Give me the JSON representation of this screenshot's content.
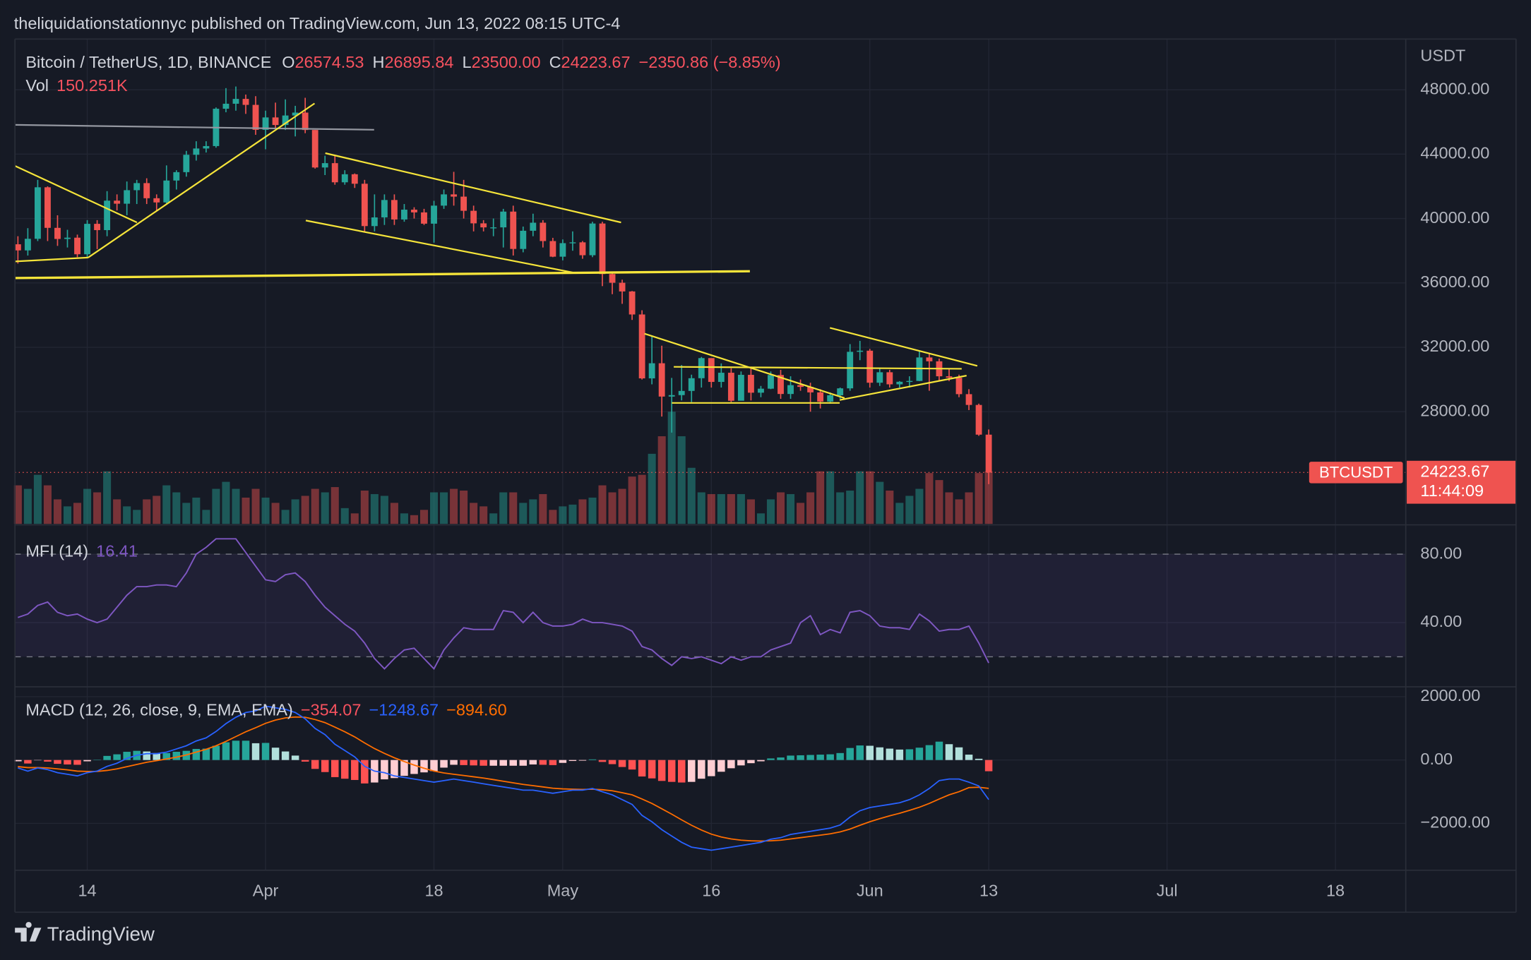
{
  "page": {
    "header": "theliquidationstationnyc published on TradingView.com, Jun 13, 2022 08:15 UTC-4",
    "brand": "TradingView"
  },
  "chart_data": [
    {
      "type": "candlestick",
      "title": "Bitcoin / TetherUS, 1D, BINANCE",
      "legend": [
        {
          "label": "O",
          "value": "26574.53"
        },
        {
          "label": "H",
          "value": "26895.84"
        },
        {
          "label": "L",
          "value": "23500.00"
        },
        {
          "label": "C",
          "value": "24223.67"
        }
      ],
      "change": "−2350.86 (−8.85%)",
      "volume_title": "Vol",
      "volume_value": "150.251K",
      "axis_unit": "USDT",
      "price_tag": "BTCUSDT",
      "price_value": "24223.67",
      "countdown": "11:44:09",
      "up_color": "#26a69a",
      "down_color": "#ef5350",
      "open": [
        38400,
        38020,
        38740,
        41940,
        39420,
        38730,
        38810,
        37780,
        39670,
        39280,
        41110,
        40920,
        41760,
        42200,
        41260,
        41000,
        42360,
        42880,
        43960,
        44350,
        44500,
        46820,
        47130,
        47430,
        47060,
        45510,
        46280,
        45810,
        46400,
        46580,
        45500,
        43170,
        43440,
        42250,
        42750,
        42160,
        39530,
        40070,
        41150,
        39940,
        40550,
        40380,
        39680,
        40800,
        41500,
        41360,
        40480,
        39700,
        39450,
        39450,
        40430,
        38110,
        39240,
        39740,
        38600,
        37630,
        38470,
        38520,
        37720,
        39690,
        36550,
        36010,
        35470,
        34040,
        30070,
        31010,
        28940,
        29030,
        29290,
        30080,
        31330,
        29850,
        30420,
        28680,
        30290,
        29180,
        29430,
        30280,
        29100,
        29650,
        29540,
        29200,
        28630,
        29020,
        29450,
        31720,
        31790,
        29800,
        30450,
        29700,
        29860,
        29910,
        31370,
        31130,
        30200,
        30110,
        29090,
        28420,
        26574.53
      ],
      "high": [
        38900,
        39400,
        42400,
        42000,
        40200,
        39300,
        39000,
        39900,
        39900,
        41700,
        41500,
        42300,
        42400,
        42500,
        41500,
        43300,
        43000,
        44200,
        44800,
        44800,
        46900,
        48100,
        48200,
        47700,
        47600,
        46700,
        47200,
        47400,
        47000,
        47500,
        45500,
        43900,
        43900,
        43000,
        42800,
        42400,
        41500,
        41500,
        41500,
        40900,
        40700,
        40600,
        41100,
        41800,
        42900,
        42400,
        40800,
        39900,
        40000,
        40600,
        40800,
        39500,
        40300,
        39900,
        38800,
        38700,
        39200,
        38600,
        39800,
        39800,
        36700,
        36200,
        35500,
        34300,
        32700,
        32100,
        30100,
        30900,
        30300,
        31400,
        31300,
        31000,
        30700,
        30500,
        30800,
        29600,
        30500,
        30600,
        30200,
        30000,
        29800,
        29400,
        29200,
        29500,
        32200,
        32400,
        31900,
        30700,
        30600,
        29900,
        30200,
        31800,
        31600,
        31300,
        30700,
        30300,
        29400,
        28500,
        26895.84
      ],
      "low": [
        37200,
        37700,
        38600,
        38600,
        38300,
        38200,
        37600,
        37600,
        38100,
        38900,
        40500,
        40200,
        40900,
        40900,
        40500,
        40900,
        41800,
        42600,
        43600,
        44100,
        44400,
        46600,
        46700,
        46500,
        45200,
        44300,
        45600,
        45500,
        45100,
        45300,
        43100,
        42700,
        42100,
        42100,
        41900,
        39200,
        39200,
        39600,
        39600,
        39800,
        40000,
        39600,
        38500,
        40600,
        40800,
        40000,
        39200,
        39200,
        38900,
        38200,
        37700,
        37900,
        38900,
        38200,
        37600,
        37400,
        38000,
        37500,
        37600,
        35800,
        35300,
        34700,
        33700,
        30000,
        29700,
        27700,
        26700,
        28700,
        28600,
        29500,
        29500,
        29500,
        28600,
        28700,
        28700,
        28900,
        29400,
        28800,
        28800,
        29300,
        28000,
        28200,
        28500,
        28800,
        29300,
        31200,
        29500,
        29600,
        29500,
        29500,
        29500,
        29900,
        29300,
        29900,
        29900,
        28900,
        28100,
        26500,
        23500
      ],
      "close": [
        38020,
        38740,
        41940,
        39420,
        38730,
        38810,
        37780,
        39670,
        39280,
        41110,
        40920,
        41760,
        42200,
        41260,
        41000,
        42360,
        42880,
        43960,
        44350,
        44500,
        46820,
        47130,
        47430,
        47060,
        45510,
        46280,
        45810,
        46400,
        46580,
        45500,
        43170,
        43440,
        42250,
        42750,
        42160,
        39530,
        40070,
        41150,
        39940,
        40550,
        40380,
        39680,
        40800,
        41500,
        41360,
        40480,
        39700,
        39450,
        39450,
        40430,
        38110,
        39240,
        39740,
        38600,
        37630,
        38470,
        38520,
        37720,
        39690,
        36550,
        36010,
        35470,
        34040,
        30070,
        31010,
        28940,
        29030,
        29290,
        30080,
        31330,
        29850,
        30420,
        28680,
        30290,
        29180,
        29430,
        30280,
        29100,
        29650,
        29540,
        29200,
        28630,
        29020,
        29450,
        31720,
        31790,
        29800,
        30450,
        29700,
        29860,
        29910,
        31370,
        31130,
        30200,
        30110,
        29090,
        28420,
        26574.53,
        24223.67
      ],
      "volume": [
        110,
        100,
        140,
        110,
        70,
        50,
        60,
        100,
        90,
        150,
        70,
        50,
        40,
        70,
        80,
        110,
        90,
        60,
        75,
        40,
        100,
        120,
        100,
        75,
        100,
        75,
        60,
        40,
        70,
        80,
        100,
        90,
        105,
        45,
        30,
        95,
        85,
        80,
        60,
        30,
        25,
        40,
        90,
        90,
        100,
        95,
        60,
        50,
        30,
        90,
        90,
        60,
        70,
        85,
        40,
        50,
        55,
        70,
        75,
        110,
        90,
        100,
        135,
        140,
        200,
        250,
        320,
        250,
        160,
        90,
        85,
        85,
        85,
        85,
        70,
        30,
        70,
        90,
        85,
        60,
        90,
        150,
        150,
        90,
        95,
        150,
        150,
        120,
        95,
        60,
        80,
        100,
        145,
        125,
        90,
        70,
        90,
        145,
        150.251
      ],
      "ylim": [
        21030,
        51150
      ],
      "yticks": [
        {
          "value": 48000,
          "label": "48000.00"
        },
        {
          "value": 44000,
          "label": "44000.00"
        },
        {
          "value": 40000,
          "label": "40000.00"
        },
        {
          "value": 36000,
          "label": "36000.00"
        },
        {
          "value": 32000,
          "label": "32000.00"
        },
        {
          "value": 28000,
          "label": "28000.00"
        }
      ],
      "xlim": [
        -0.3,
        140.1
      ],
      "xticks": [
        {
          "value": 7,
          "label": "14"
        },
        {
          "value": 25,
          "label": "Apr"
        },
        {
          "value": 42,
          "label": "18"
        },
        {
          "value": 55,
          "label": "May"
        },
        {
          "value": 70,
          "label": "16"
        },
        {
          "value": 86,
          "label": "Jun"
        },
        {
          "value": 98,
          "label": "13"
        },
        {
          "value": 116,
          "label": "Jul"
        },
        {
          "value": 133,
          "label": "18"
        }
      ],
      "grid": true
    },
    {
      "type": "line",
      "title": "MFI (14)",
      "value_label": "16.41",
      "color": "#7e57c2",
      "values": [
        43,
        45,
        50,
        52,
        46,
        44,
        45,
        42,
        40,
        42,
        49,
        56,
        61,
        61,
        62,
        62,
        61,
        69,
        80,
        84,
        89,
        89,
        89,
        81,
        73,
        65,
        64,
        68,
        69,
        64,
        56,
        49,
        44,
        39,
        35,
        28,
        19,
        13,
        19,
        24,
        25,
        19,
        13,
        24,
        31,
        37,
        36,
        36,
        36,
        47,
        46,
        40,
        46,
        40,
        38,
        38,
        39,
        42,
        40,
        40,
        39,
        38,
        35,
        26,
        24,
        19,
        15,
        20,
        19,
        20,
        18,
        16,
        20,
        18,
        20,
        20,
        24,
        26,
        28,
        40,
        44,
        33,
        36,
        34,
        46,
        47,
        44,
        38,
        37,
        37,
        36,
        45,
        41,
        35,
        36,
        36,
        38,
        28,
        16.41
      ],
      "bands": [
        20,
        80
      ],
      "ylim": [
        3,
        96
      ],
      "yticks": [
        {
          "value": 80,
          "label": "80.00"
        },
        {
          "value": 40,
          "label": "40.00"
        }
      ]
    },
    {
      "type": "macd",
      "title": "MACD (12, 26, close, 9, EMA, EMA)",
      "histogram": {
        "value_label": "−354.07",
        "colors": {
          "grow_above": "#26a69a",
          "fall_above": "#b2dfdb",
          "grow_below": "#ffcdd2",
          "fall_below": "#ff5252"
        },
        "values": [
          -40,
          -110,
          -10,
          -50,
          -120,
          -140,
          -150,
          -40,
          10,
          130,
          180,
          260,
          290,
          270,
          220,
          220,
          260,
          290,
          350,
          360,
          450,
          560,
          610,
          610,
          530,
          540,
          390,
          270,
          140,
          -50,
          -280,
          -380,
          -540,
          -590,
          -630,
          -740,
          -710,
          -610,
          -570,
          -500,
          -440,
          -390,
          -350,
          -240,
          -150,
          -160,
          -170,
          -180,
          -180,
          -180,
          -180,
          -180,
          -140,
          -150,
          -160,
          -90,
          -30,
          -20,
          20,
          -60,
          -130,
          -220,
          -300,
          -520,
          -580,
          -660,
          -690,
          -710,
          -690,
          -590,
          -510,
          -370,
          -260,
          -170,
          -100,
          -40,
          50,
          80,
          140,
          150,
          160,
          170,
          180,
          220,
          380,
          460,
          450,
          400,
          360,
          330,
          340,
          390,
          470,
          580,
          500,
          400,
          170,
          40,
          -354.07
        ]
      },
      "macd": {
        "value_label": "−1248.67",
        "color": "#2962ff",
        "values": [
          -250,
          -350,
          -250,
          -300,
          -400,
          -450,
          -500,
          -400,
          -350,
          -200,
          -100,
          50,
          150,
          200,
          200,
          250,
          350,
          450,
          600,
          700,
          900,
          1150,
          1350,
          1500,
          1550,
          1700,
          1650,
          1600,
          1500,
          1300,
          1000,
          800,
          500,
          300,
          100,
          -200,
          -350,
          -400,
          -500,
          -550,
          -600,
          -650,
          -700,
          -650,
          -600,
          -650,
          -700,
          -750,
          -800,
          -850,
          -900,
          -950,
          -950,
          -1000,
          -1050,
          -1000,
          -950,
          -950,
          -900,
          -1000,
          -1100,
          -1250,
          -1400,
          -1750,
          -1950,
          -2200,
          -2400,
          -2600,
          -2750,
          -2800,
          -2850,
          -2800,
          -2750,
          -2700,
          -2650,
          -2600,
          -2500,
          -2450,
          -2350,
          -2300,
          -2250,
          -2200,
          -2150,
          -2050,
          -1800,
          -1600,
          -1500,
          -1450,
          -1400,
          -1350,
          -1250,
          -1100,
          -900,
          -650,
          -600,
          -600,
          -700,
          -820,
          -1248.67
        ]
      },
      "signal": {
        "value_label": "−894.60",
        "color": "#ff6d00",
        "values": [
          -210,
          -240,
          -240,
          -250,
          -280,
          -310,
          -350,
          -360,
          -360,
          -330,
          -280,
          -210,
          -140,
          -70,
          -20,
          30,
          90,
          160,
          250,
          340,
          450,
          590,
          740,
          890,
          1020,
          1160,
          1260,
          1330,
          1360,
          1350,
          1280,
          1180,
          1040,
          890,
          730,
          540,
          360,
          210,
          70,
          -50,
          -160,
          -260,
          -350,
          -410,
          -450,
          -490,
          -530,
          -570,
          -620,
          -670,
          -720,
          -770,
          -810,
          -850,
          -890,
          -910,
          -920,
          -930,
          -920,
          -940,
          -970,
          -1030,
          -1100,
          -1230,
          -1370,
          -1540,
          -1710,
          -1890,
          -2060,
          -2210,
          -2340,
          -2430,
          -2490,
          -2530,
          -2550,
          -2560,
          -2550,
          -2530,
          -2490,
          -2450,
          -2410,
          -2370,
          -2330,
          -2270,
          -2180,
          -2060,
          -1950,
          -1850,
          -1760,
          -1680,
          -1590,
          -1490,
          -1370,
          -1230,
          -1100,
          -1000,
          -870,
          -860,
          -894.6
        ]
      },
      "ylim": [
        -3480,
        2280
      ],
      "yticks": [
        {
          "value": 2000,
          "label": "2000.00"
        },
        {
          "value": 0,
          "label": "0.00"
        },
        {
          "value": -2000,
          "label": "−2000.00"
        }
      ]
    }
  ]
}
